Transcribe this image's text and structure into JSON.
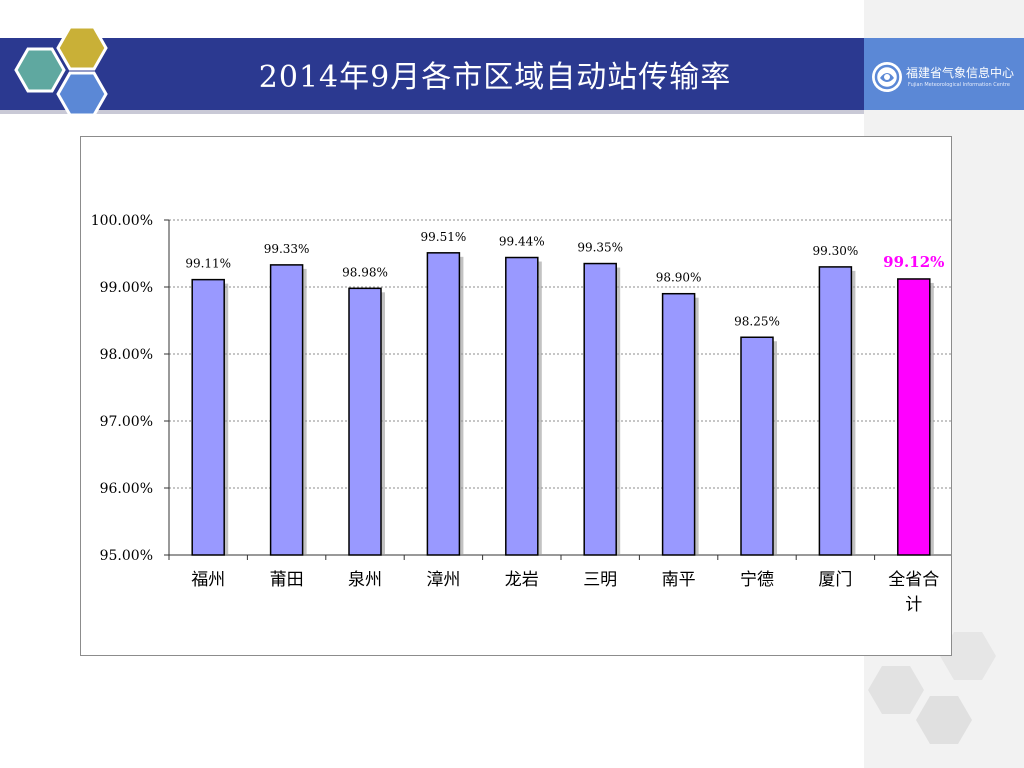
{
  "slide": {
    "title": "2014年9月各市区域自动站传输率",
    "logo_text": "福建省气象信息中心",
    "logo_subtext": "Fujian Meteorological Information Centre"
  },
  "colors": {
    "title_band": "#2b3990",
    "bar": "#9999ff",
    "highlight_bar": "#ff00ff",
    "highlight_label": "#ff00ff"
  },
  "chart_data": {
    "type": "bar",
    "title": "",
    "xlabel": "",
    "ylabel": "",
    "categories": [
      "福州",
      "莆田",
      "泉州",
      "漳州",
      "龙岩",
      "三明",
      "南平",
      "宁德",
      "厦门",
      "全省合计"
    ],
    "category_labels": [
      [
        "福州"
      ],
      [
        "莆田"
      ],
      [
        "泉州"
      ],
      [
        "漳州"
      ],
      [
        "龙岩"
      ],
      [
        "三明"
      ],
      [
        "南平"
      ],
      [
        "宁德"
      ],
      [
        "厦门"
      ],
      [
        "全省合",
        "计"
      ]
    ],
    "values": [
      99.11,
      99.33,
      98.98,
      99.51,
      99.44,
      99.35,
      98.9,
      98.25,
      99.3,
      99.12
    ],
    "data_labels": [
      "99.11%",
      "99.33%",
      "98.98%",
      "99.51%",
      "99.44%",
      "99.35%",
      "98.90%",
      "98.25%",
      "99.30%",
      "99.12%"
    ],
    "highlight_index": 9,
    "ylim": [
      95,
      100
    ],
    "yticks": [
      95,
      96,
      97,
      98,
      99,
      100
    ],
    "ytick_labels": [
      "95.00%",
      "96.00%",
      "97.00%",
      "98.00%",
      "99.00%",
      "100.00%"
    ],
    "grid": true,
    "legend": "none"
  }
}
